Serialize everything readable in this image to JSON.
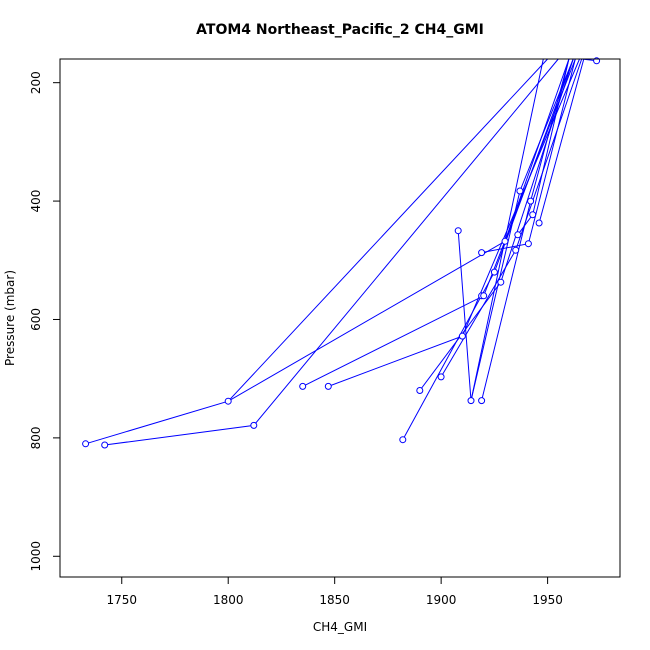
{
  "chart_data": {
    "type": "line",
    "title": "ATOM4 Northeast_Pacific_2 CH4_GMI",
    "xlabel": "CH4_GMI",
    "ylabel": "Pressure (mbar)",
    "xlim": [
      1721,
      1984
    ],
    "ylim": [
      1035,
      160
    ],
    "y_reversed": true,
    "x_ticks": [
      1750,
      1800,
      1850,
      1900,
      1950
    ],
    "y_ticks": [
      200,
      400,
      600,
      800,
      1000
    ],
    "grid": false,
    "series_color": "#0000ff",
    "series": [
      {
        "name": "",
        "x": [
          1973,
          1966
        ],
        "y": [
          163,
          160
        ]
      },
      {
        "name": "",
        "x": [
          1733,
          1800,
          1950
        ],
        "y": [
          810,
          738,
          160
        ]
      },
      {
        "name": "",
        "x": [
          1742,
          1812,
          1955
        ],
        "y": [
          812,
          779,
          160
        ]
      },
      {
        "name": "",
        "x": [
          1800,
          1930,
          1960
        ],
        "y": [
          738,
          468,
          160
        ]
      },
      {
        "name": "",
        "x": [
          1835,
          1920,
          1963
        ],
        "y": [
          713,
          560,
          160
        ]
      },
      {
        "name": "",
        "x": [
          1847,
          1910,
          1965
        ],
        "y": [
          713,
          628,
          160
        ]
      },
      {
        "name": "",
        "x": [
          1882,
          1925,
          1962
        ],
        "y": [
          803,
          520,
          160
        ]
      },
      {
        "name": "",
        "x": [
          1890,
          1928,
          1962
        ],
        "y": [
          720,
          537,
          160
        ]
      },
      {
        "name": "",
        "x": [
          1900,
          1935,
          1966
        ],
        "y": [
          697,
          483,
          160
        ]
      },
      {
        "name": "",
        "x": [
          1908,
          1914,
          1948
        ],
        "y": [
          450,
          737,
          160
        ]
      },
      {
        "name": "",
        "x": [
          1914,
          1937,
          1962
        ],
        "y": [
          737,
          383,
          160
        ]
      },
      {
        "name": "",
        "x": [
          1919,
          1942,
          1960
        ],
        "y": [
          737,
          400,
          160
        ]
      },
      {
        "name": "",
        "x": [
          1919,
          1941,
          1963
        ],
        "y": [
          487,
          472,
          160
        ]
      },
      {
        "name": "",
        "x": [
          1936,
          1943,
          1960
        ],
        "y": [
          457,
          423,
          160
        ]
      },
      {
        "name": "",
        "x": [
          1946,
          1967
        ],
        "y": [
          437,
          160
        ]
      }
    ],
    "markers": {
      "x": [
        1973,
        1733,
        1742,
        1800,
        1812,
        1835,
        1847,
        1882,
        1890,
        1900,
        1908,
        1910,
        1914,
        1919,
        1919,
        1919,
        1920,
        1925,
        1928,
        1930,
        1935,
        1936,
        1937,
        1941,
        1942,
        1943,
        1946
      ],
      "y": [
        163,
        810,
        812,
        738,
        779,
        713,
        713,
        803,
        720,
        697,
        450,
        628,
        737,
        737,
        487,
        560,
        560,
        520,
        537,
        468,
        483,
        457,
        383,
        472,
        400,
        423,
        437
      ]
    }
  }
}
